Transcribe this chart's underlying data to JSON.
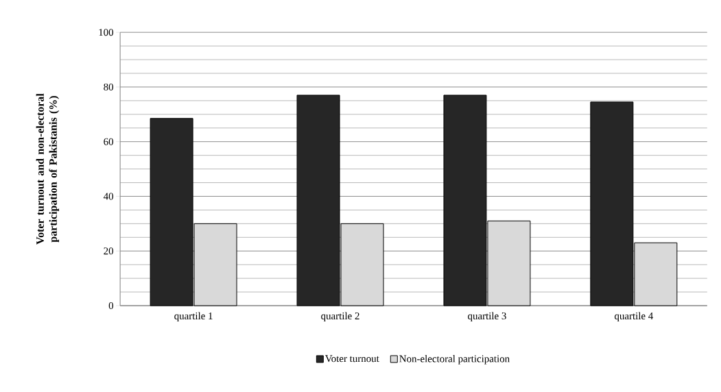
{
  "chart_data": {
    "type": "bar",
    "ylabel": "Voter turnout and non-electoral participation of Pakistanis (%)",
    "categories": [
      "quartile 1",
      "quartile 2",
      "quartile 3",
      "quartile 4"
    ],
    "series": [
      {
        "name": "Voter turnout",
        "color": "#262626",
        "values": [
          68.5,
          77,
          77,
          74.5
        ]
      },
      {
        "name": "Non-electoral participation",
        "color": "#d9d9d9",
        "values": [
          30,
          30,
          31,
          23
        ]
      }
    ],
    "ylim": [
      0,
      100
    ],
    "yticks": [
      0,
      20,
      40,
      60,
      80,
      100
    ],
    "grid": "y",
    "legend": "bottom"
  }
}
